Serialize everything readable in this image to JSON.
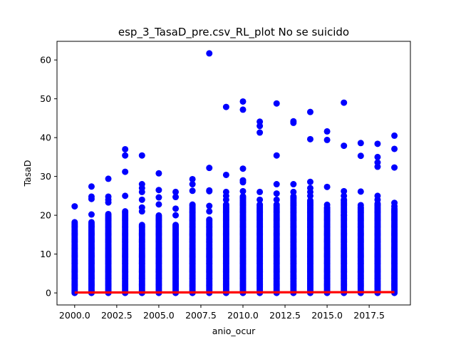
{
  "chart_data": {
    "type": "scatter",
    "title": "esp_3_TasaD_pre.csv_RL_plot No se suicido",
    "xlabel": "anio_ocur",
    "ylabel": "TasaD",
    "xlim": [
      1998.95,
      2019.95
    ],
    "ylim": [
      -3.1,
      64.8
    ],
    "x_ticks": [
      2000.0,
      2002.5,
      2005.0,
      2007.5,
      2010.0,
      2012.5,
      2015.0,
      2017.5
    ],
    "x_tick_labels": [
      "2000.0",
      "2002.5",
      "2005.0",
      "2007.5",
      "2010.0",
      "2012.5",
      "2015.0",
      "2017.5"
    ],
    "y_ticks": [
      0,
      10,
      20,
      30,
      40,
      50,
      60
    ],
    "y_tick_labels": [
      "0",
      "10",
      "20",
      "30",
      "40",
      "50",
      "60"
    ],
    "grid": false,
    "scatter_color": "#0000ff",
    "line_color": "#ff0000",
    "series": [
      {
        "kind": "scatter",
        "dense_columns": [
          {
            "x": 2000,
            "max": 18.5
          },
          {
            "x": 2001,
            "max": 18.3
          },
          {
            "x": 2002,
            "max": 20.5
          },
          {
            "x": 2003,
            "max": 21.0
          },
          {
            "x": 2004,
            "max": 17.5
          },
          {
            "x": 2005,
            "max": 20.0
          },
          {
            "x": 2006,
            "max": 17.5
          },
          {
            "x": 2007,
            "max": 23.0
          },
          {
            "x": 2008,
            "max": 19.0
          },
          {
            "x": 2009,
            "max": 23.0
          },
          {
            "x": 2010,
            "max": 25.0
          },
          {
            "x": 2011,
            "max": 23.0
          },
          {
            "x": 2012,
            "max": 23.0
          },
          {
            "x": 2013,
            "max": 25.0
          },
          {
            "x": 2014,
            "max": 24.0
          },
          {
            "x": 2015,
            "max": 22.0
          },
          {
            "x": 2016,
            "max": 24.0
          },
          {
            "x": 2017,
            "max": 22.0
          },
          {
            "x": 2018,
            "max": 23.0
          },
          {
            "x": 2019,
            "max": 22.0
          }
        ],
        "points": [
          [
            2000,
            22.3
          ],
          [
            2001,
            20.2
          ],
          [
            2001,
            24.2
          ],
          [
            2001,
            24.8
          ],
          [
            2001,
            27.4
          ],
          [
            2002,
            23.3
          ],
          [
            2002,
            24.0
          ],
          [
            2002,
            24.8
          ],
          [
            2002,
            29.4
          ],
          [
            2003,
            25.0
          ],
          [
            2003,
            31.2
          ],
          [
            2003,
            35.4
          ],
          [
            2003,
            37.0
          ],
          [
            2004,
            21.0
          ],
          [
            2004,
            22.0
          ],
          [
            2004,
            24.0
          ],
          [
            2004,
            26.0
          ],
          [
            2004,
            27.0
          ],
          [
            2004,
            28.0
          ],
          [
            2004,
            35.4
          ],
          [
            2005,
            22.8
          ],
          [
            2005,
            24.6
          ],
          [
            2005,
            26.5
          ],
          [
            2005,
            30.8
          ],
          [
            2006,
            20.0
          ],
          [
            2006,
            21.7
          ],
          [
            2006,
            24.7
          ],
          [
            2006,
            26.0
          ],
          [
            2007,
            26.3
          ],
          [
            2007,
            28.0
          ],
          [
            2007,
            29.3
          ],
          [
            2008,
            21.0
          ],
          [
            2008,
            22.4
          ],
          [
            2008,
            26.2
          ],
          [
            2008,
            26.4
          ],
          [
            2008,
            32.2
          ],
          [
            2008,
            61.7
          ],
          [
            2009,
            24.0
          ],
          [
            2009,
            25.0
          ],
          [
            2009,
            26.0
          ],
          [
            2009,
            30.4
          ],
          [
            2009,
            47.9
          ],
          [
            2010,
            26.2
          ],
          [
            2010,
            28.5
          ],
          [
            2010,
            29.0
          ],
          [
            2010,
            32.0
          ],
          [
            2010,
            47.2
          ],
          [
            2010,
            49.3
          ],
          [
            2011,
            24.0
          ],
          [
            2011,
            26.0
          ],
          [
            2011,
            41.3
          ],
          [
            2011,
            43.0
          ],
          [
            2011,
            44.1
          ],
          [
            2012,
            24.0
          ],
          [
            2012,
            25.6
          ],
          [
            2012,
            28.0
          ],
          [
            2012,
            35.4
          ],
          [
            2012,
            48.8
          ],
          [
            2013,
            26.0
          ],
          [
            2013,
            28.0
          ],
          [
            2013,
            43.8
          ],
          [
            2013,
            44.2
          ],
          [
            2014,
            25.0
          ],
          [
            2014,
            26.0
          ],
          [
            2014,
            27.0
          ],
          [
            2014,
            28.6
          ],
          [
            2014,
            39.6
          ],
          [
            2014,
            46.6
          ],
          [
            2015,
            22.0
          ],
          [
            2015,
            22.7
          ],
          [
            2015,
            27.3
          ],
          [
            2015,
            39.4
          ],
          [
            2015,
            41.6
          ],
          [
            2016,
            20.0
          ],
          [
            2016,
            24.0
          ],
          [
            2016,
            25.0
          ],
          [
            2016,
            26.2
          ],
          [
            2016,
            37.9
          ],
          [
            2016,
            49.0
          ],
          [
            2017,
            22.0
          ],
          [
            2017,
            22.6
          ],
          [
            2017,
            26.1
          ],
          [
            2017,
            35.3
          ],
          [
            2017,
            38.6
          ],
          [
            2018,
            23.0
          ],
          [
            2018,
            24.0
          ],
          [
            2018,
            25.0
          ],
          [
            2018,
            32.5
          ],
          [
            2018,
            33.6
          ],
          [
            2018,
            35.0
          ],
          [
            2018,
            38.4
          ],
          [
            2019,
            22.3
          ],
          [
            2019,
            23.2
          ],
          [
            2019,
            32.3
          ],
          [
            2019,
            37.1
          ],
          [
            2019,
            40.5
          ]
        ]
      },
      {
        "kind": "line",
        "x": [
          2000,
          2019
        ],
        "y": [
          0.1,
          0.2
        ]
      }
    ]
  }
}
